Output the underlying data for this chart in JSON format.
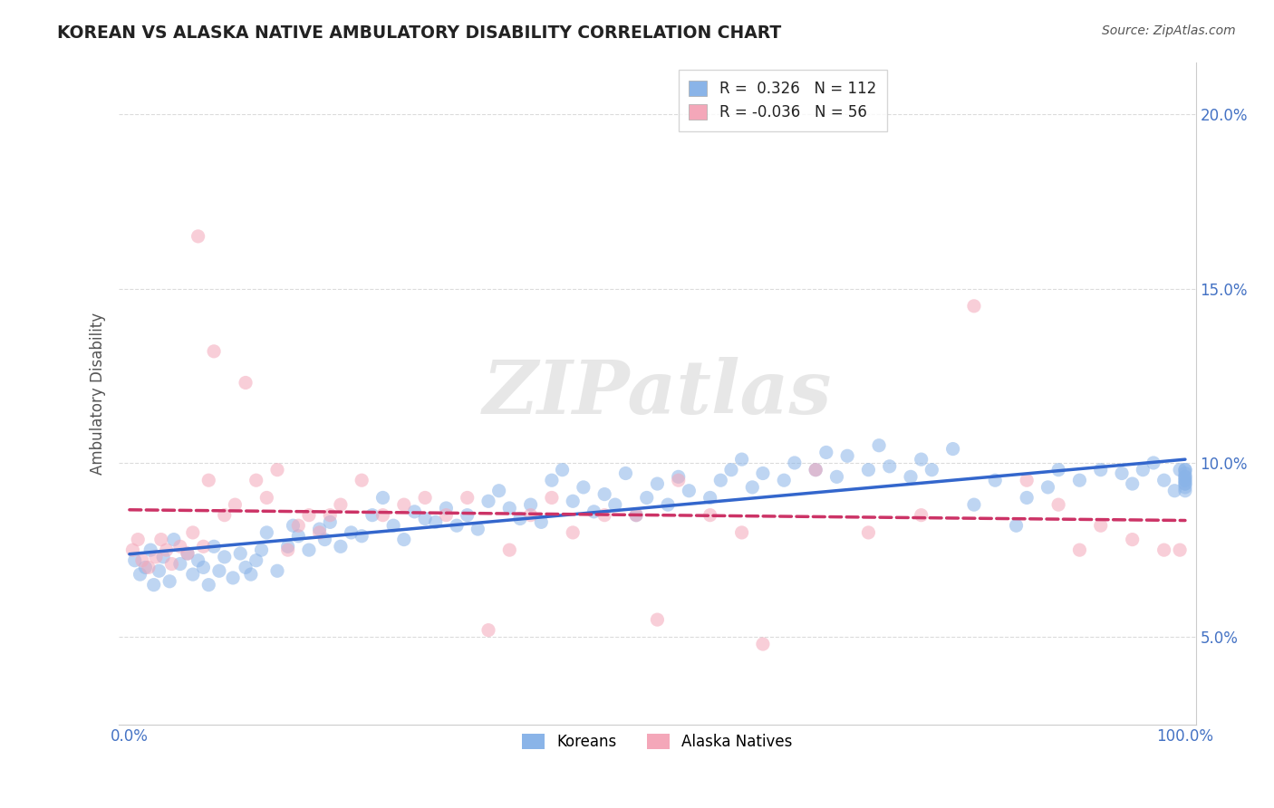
{
  "title": "KOREAN VS ALASKA NATIVE AMBULATORY DISABILITY CORRELATION CHART",
  "source": "Source: ZipAtlas.com",
  "ylabel": "Ambulatory Disability",
  "xlim": [
    -1,
    101
  ],
  "ylim": [
    2.5,
    21.5
  ],
  "ytick_vals": [
    5,
    10,
    15,
    20
  ],
  "ytick_labels": [
    "5.0%",
    "10.0%",
    "15.0%",
    "20.0%"
  ],
  "xtick_vals": [
    0,
    100
  ],
  "xtick_labels": [
    "0.0%",
    "100.0%"
  ],
  "korean_color": "#8ab4e8",
  "alaska_color": "#f4a7b9",
  "korean_line_color": "#3366cc",
  "alaska_line_color": "#cc3366",
  "axis_label_color": "#4472c4",
  "legend_korean_r": "0.326",
  "legend_korean_n": "112",
  "legend_alaska_r": "-0.036",
  "legend_alaska_n": "56",
  "background_color": "#ffffff",
  "grid_color": "#cccccc",
  "watermark_text": "ZIPatlas",
  "korean_x": [
    0.5,
    1.0,
    1.5,
    2.0,
    2.3,
    2.8,
    3.2,
    3.8,
    4.2,
    4.8,
    5.5,
    6.0,
    6.5,
    7.0,
    7.5,
    8.0,
    8.5,
    9.0,
    9.8,
    10.5,
    11.0,
    11.5,
    12.0,
    12.5,
    13.0,
    14.0,
    15.0,
    15.5,
    16.0,
    17.0,
    18.0,
    18.5,
    19.0,
    20.0,
    21.0,
    22.0,
    23.0,
    24.0,
    25.0,
    26.0,
    27.0,
    28.0,
    29.0,
    30.0,
    31.0,
    32.0,
    33.0,
    34.0,
    35.0,
    36.0,
    37.0,
    38.0,
    39.0,
    40.0,
    41.0,
    42.0,
    43.0,
    44.0,
    45.0,
    46.0,
    47.0,
    48.0,
    49.0,
    50.0,
    51.0,
    52.0,
    53.0,
    55.0,
    56.0,
    57.0,
    58.0,
    59.0,
    60.0,
    62.0,
    63.0,
    65.0,
    66.0,
    67.0,
    68.0,
    70.0,
    71.0,
    72.0,
    74.0,
    75.0,
    76.0,
    78.0,
    80.0,
    82.0,
    84.0,
    85.0,
    87.0,
    88.0,
    90.0,
    92.0,
    94.0,
    95.0,
    96.0,
    97.0,
    98.0,
    99.0,
    99.5,
    100.0,
    100.0,
    100.0,
    100.0,
    100.0,
    100.0,
    100.0,
    100.0,
    100.0,
    100.0,
    100.0
  ],
  "korean_y": [
    7.2,
    6.8,
    7.0,
    7.5,
    6.5,
    6.9,
    7.3,
    6.6,
    7.8,
    7.1,
    7.4,
    6.8,
    7.2,
    7.0,
    6.5,
    7.6,
    6.9,
    7.3,
    6.7,
    7.4,
    7.0,
    6.8,
    7.2,
    7.5,
    8.0,
    6.9,
    7.6,
    8.2,
    7.9,
    7.5,
    8.1,
    7.8,
    8.3,
    7.6,
    8.0,
    7.9,
    8.5,
    9.0,
    8.2,
    7.8,
    8.6,
    8.4,
    8.3,
    8.7,
    8.2,
    8.5,
    8.1,
    8.9,
    9.2,
    8.7,
    8.4,
    8.8,
    8.3,
    9.5,
    9.8,
    8.9,
    9.3,
    8.6,
    9.1,
    8.8,
    9.7,
    8.5,
    9.0,
    9.4,
    8.8,
    9.6,
    9.2,
    9.0,
    9.5,
    9.8,
    10.1,
    9.3,
    9.7,
    9.5,
    10.0,
    9.8,
    10.3,
    9.6,
    10.2,
    9.8,
    10.5,
    9.9,
    9.6,
    10.1,
    9.8,
    10.4,
    8.8,
    9.5,
    8.2,
    9.0,
    9.3,
    9.8,
    9.5,
    9.8,
    9.7,
    9.4,
    9.8,
    10.0,
    9.5,
    9.2,
    9.8,
    9.5,
    9.3,
    9.6,
    9.8,
    9.4,
    9.7,
    9.5,
    9.2,
    9.6,
    9.4,
    9.8
  ],
  "alaska_x": [
    0.3,
    0.8,
    1.2,
    1.8,
    2.5,
    3.0,
    3.5,
    4.0,
    4.8,
    5.5,
    6.0,
    6.5,
    7.0,
    7.5,
    8.0,
    9.0,
    10.0,
    11.0,
    12.0,
    13.0,
    14.0,
    15.0,
    16.0,
    17.0,
    18.0,
    19.0,
    20.0,
    22.0,
    24.0,
    26.0,
    28.0,
    30.0,
    32.0,
    34.0,
    36.0,
    38.0,
    40.0,
    42.0,
    45.0,
    48.0,
    50.0,
    52.0,
    55.0,
    58.0,
    60.0,
    65.0,
    70.0,
    75.0,
    80.0,
    85.0,
    88.0,
    90.0,
    92.0,
    95.0,
    98.0,
    99.5
  ],
  "alaska_y": [
    7.5,
    7.8,
    7.2,
    7.0,
    7.3,
    7.8,
    7.5,
    7.1,
    7.6,
    7.4,
    8.0,
    16.5,
    7.6,
    9.5,
    13.2,
    8.5,
    8.8,
    12.3,
    9.5,
    9.0,
    9.8,
    7.5,
    8.2,
    8.5,
    8.0,
    8.5,
    8.8,
    9.5,
    8.5,
    8.8,
    9.0,
    8.5,
    9.0,
    5.2,
    7.5,
    8.5,
    9.0,
    8.0,
    8.5,
    8.5,
    5.5,
    9.5,
    8.5,
    8.0,
    4.8,
    9.8,
    8.0,
    8.5,
    14.5,
    9.5,
    8.8,
    7.5,
    8.2,
    7.8,
    7.5,
    7.5
  ]
}
